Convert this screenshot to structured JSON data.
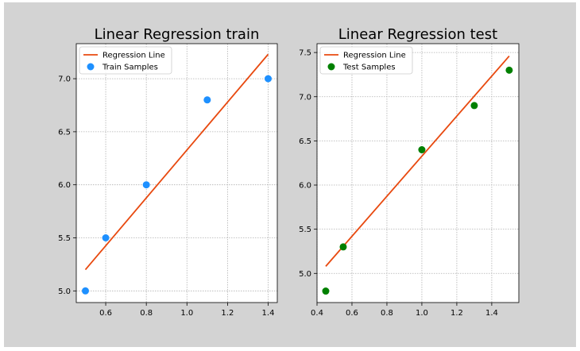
{
  "chart_data": [
    {
      "type": "scatter",
      "title": "Linear Regression train",
      "xlabel": "",
      "ylabel": "",
      "xlim": [
        0.455,
        1.445
      ],
      "ylim": [
        4.89,
        7.33
      ],
      "xticks": [
        0.6,
        0.8,
        1.0,
        1.2,
        1.4
      ],
      "xtick_labels": [
        "0.6",
        "0.8",
        "1.0",
        "1.2",
        "1.4"
      ],
      "yticks": [
        5.0,
        5.5,
        6.0,
        6.5,
        7.0
      ],
      "ytick_labels": [
        "5.0",
        "5.5",
        "6.0",
        "6.5",
        "7.0"
      ],
      "grid": true,
      "legend_position": "top-left",
      "series": [
        {
          "name": "Regression Line",
          "kind": "line",
          "x": [
            0.5,
            1.4
          ],
          "y": [
            5.2,
            7.23
          ],
          "color": "#e8490f"
        },
        {
          "name": "Train Samples",
          "kind": "scatter",
          "x": [
            0.5,
            0.6,
            0.8,
            1.1,
            1.4
          ],
          "y": [
            5.0,
            5.5,
            6.0,
            6.8,
            7.0
          ],
          "color": "#1e90ff"
        }
      ]
    },
    {
      "type": "scatter",
      "title": "Linear Regression test",
      "xlabel": "",
      "ylabel": "",
      "xlim": [
        0.4,
        1.555
      ],
      "ylim": [
        4.67,
        7.6
      ],
      "xticks": [
        0.4,
        0.6,
        0.8,
        1.0,
        1.2,
        1.4
      ],
      "xtick_labels": [
        "0.4",
        "0.6",
        "0.8",
        "1.0",
        "1.2",
        "1.4"
      ],
      "yticks": [
        5.0,
        5.5,
        6.0,
        6.5,
        7.0,
        7.5
      ],
      "ytick_labels": [
        "5.0",
        "5.5",
        "6.0",
        "6.5",
        "7.0",
        "7.5"
      ],
      "grid": true,
      "legend_position": "top-left",
      "series": [
        {
          "name": "Regression Line",
          "kind": "line",
          "x": [
            0.45,
            1.5
          ],
          "y": [
            5.08,
            7.46
          ],
          "color": "#e8490f"
        },
        {
          "name": "Test Samples",
          "kind": "scatter",
          "x": [
            0.45,
            0.55,
            1.0,
            1.3,
            1.5
          ],
          "y": [
            4.8,
            5.3,
            6.4,
            6.9,
            7.3
          ],
          "color": "#008000"
        }
      ]
    }
  ]
}
